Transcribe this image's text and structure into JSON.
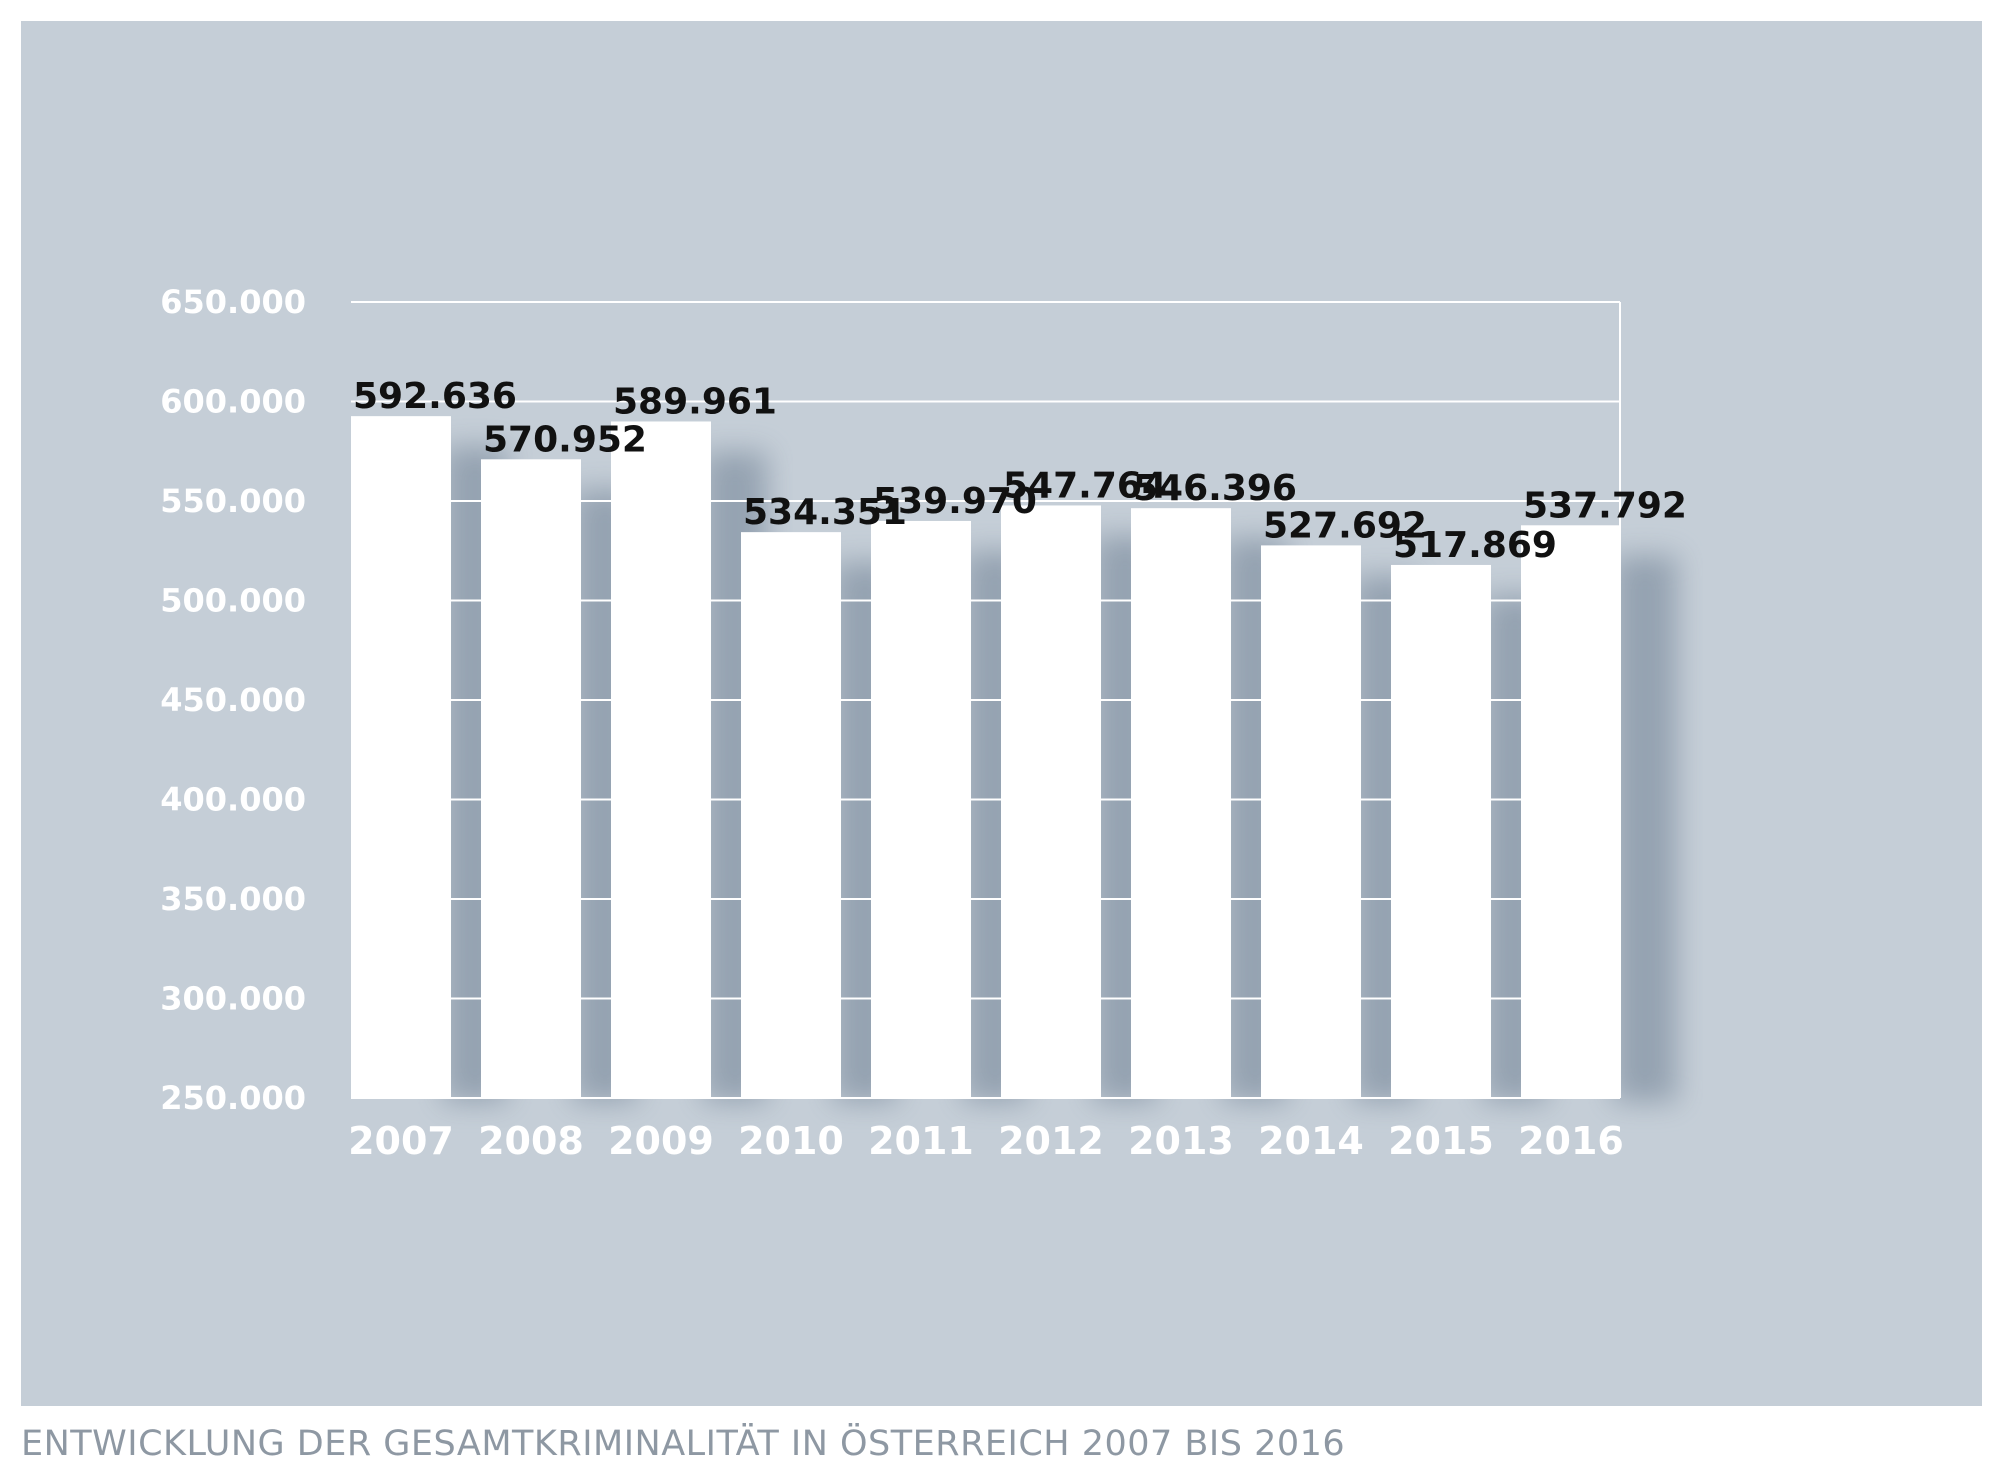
{
  "chart_data": {
    "type": "bar",
    "title": "ENTWICKLUNG DER GESAMTKRIMINALITÄT IN ÖSTERREICH 2007 BIS 2016",
    "xlabel": "",
    "ylabel": "",
    "categories": [
      "2007",
      "2008",
      "2009",
      "2010",
      "2011",
      "2012",
      "2013",
      "2014",
      "2015",
      "2016"
    ],
    "values": [
      592636,
      570952,
      589961,
      534351,
      539970,
      547764,
      546396,
      527692,
      517869,
      537792
    ],
    "value_labels": [
      "592.636",
      "570.952",
      "589.961",
      "534.351",
      "539.970",
      "547.764",
      "546.396",
      "527.692",
      "517.869",
      "537.792"
    ],
    "ylim": [
      250000,
      650000
    ],
    "yticks": [
      250000,
      300000,
      350000,
      400000,
      450000,
      500000,
      550000,
      600000,
      650000
    ],
    "ytick_labels": [
      "250.000",
      "300.000",
      "350.000",
      "400.000",
      "450.000",
      "500.000",
      "550.000",
      "600.000",
      "650.000"
    ],
    "grid": true,
    "colors": {
      "panel_background": "#c5ced7",
      "bar": "#ffffff",
      "bar_shadow": "#8d9bab",
      "gridline": "#ffffff",
      "tick_text": "#ffffff",
      "data_label_text": "#111111",
      "caption_text": "#8e98a3"
    }
  }
}
